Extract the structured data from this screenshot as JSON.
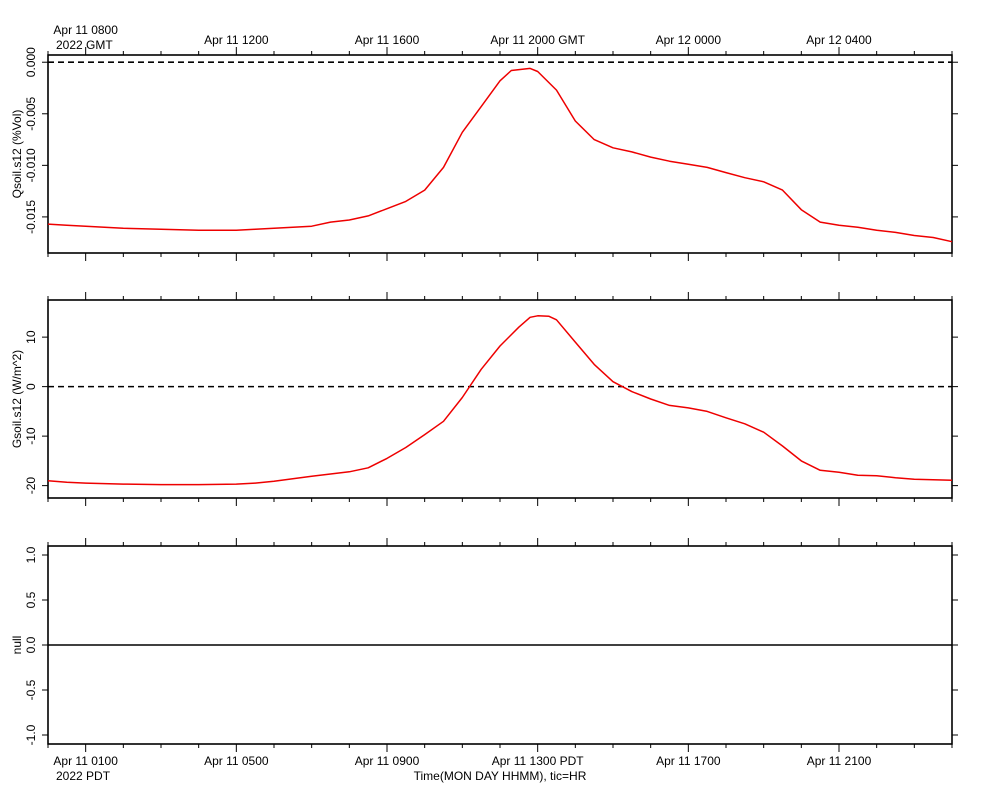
{
  "x_axis": {
    "start_hour_pdt": 0.0,
    "end_hour_pdt": 24.0,
    "top_ticks": [
      {
        "hour": 1,
        "label": "Apr 11 0800",
        "sublabel": "2022 GMT"
      },
      {
        "hour": 5,
        "label": "Apr 11 1200",
        "sublabel": ""
      },
      {
        "hour": 9,
        "label": "Apr 11 1600",
        "sublabel": ""
      },
      {
        "hour": 13,
        "label": "Apr 11 2000 GMT",
        "sublabel": ""
      },
      {
        "hour": 17,
        "label": "Apr 12 0000",
        "sublabel": ""
      },
      {
        "hour": 21,
        "label": "Apr 12 0400",
        "sublabel": ""
      }
    ],
    "bottom_ticks": [
      {
        "hour": 1,
        "label": "Apr 11 0100",
        "sublabel": "2022 PDT"
      },
      {
        "hour": 5,
        "label": "Apr 11 0500",
        "sublabel": ""
      },
      {
        "hour": 9,
        "label": "Apr 11 0900",
        "sublabel": ""
      },
      {
        "hour": 13,
        "label": "Apr 11 1300 PDT",
        "sublabel": ""
      },
      {
        "hour": 17,
        "label": "Apr 11 1700",
        "sublabel": ""
      },
      {
        "hour": 21,
        "label": "Apr 11 2100",
        "sublabel": ""
      }
    ],
    "xlabel": "Time(MON DAY HHMM), tic=HR"
  },
  "chart_data": [
    {
      "type": "line",
      "ylabel": "Qsoil.s12 (%Vol)",
      "ylim": [
        -0.0185,
        0.0007
      ],
      "yticks": [
        {
          "value": 0.0,
          "label": "0.000"
        },
        {
          "value": -0.005,
          "label": "-0.005"
        },
        {
          "value": -0.01,
          "label": "-0.010"
        },
        {
          "value": -0.015,
          "label": "-0.015"
        }
      ],
      "reference_line": 0.0,
      "series_color": "#ee0000",
      "series": [
        {
          "x": [
            0,
            0.5,
            1,
            2,
            3,
            4,
            5,
            5.5,
            6,
            7,
            7.5,
            8,
            8.5,
            9,
            9.5,
            10,
            10.5,
            11,
            11.5,
            12,
            12.3,
            12.8,
            13,
            13.5,
            14,
            14.5,
            15,
            15.5,
            16,
            16.5,
            17,
            17.5,
            18,
            18.5,
            19,
            19.5,
            20,
            20.5,
            21,
            21.5,
            22,
            22.5,
            23,
            23.5,
            24
          ],
          "y": [
            -0.0157,
            -0.0158,
            -0.0159,
            -0.0161,
            -0.0162,
            -0.0163,
            -0.0163,
            -0.0162,
            -0.0161,
            -0.0159,
            -0.0155,
            -0.0153,
            -0.0149,
            -0.0142,
            -0.0135,
            -0.0124,
            -0.0102,
            -0.0068,
            -0.0043,
            -0.0018,
            -0.0008,
            -0.0006,
            -0.0009,
            -0.0027,
            -0.0057,
            -0.0075,
            -0.0083,
            -0.0087,
            -0.0092,
            -0.0096,
            -0.0099,
            -0.0102,
            -0.0107,
            -0.0112,
            -0.0116,
            -0.0124,
            -0.0143,
            -0.0155,
            -0.0158,
            -0.016,
            -0.0163,
            -0.0165,
            -0.0168,
            -0.017,
            -0.0174
          ]
        }
      ]
    },
    {
      "type": "line",
      "ylabel": "Gsoil.s12 (W/m^2)",
      "ylim": [
        -22.5,
        17.5
      ],
      "yticks": [
        {
          "value": 10,
          "label": "10"
        },
        {
          "value": 0,
          "label": "0"
        },
        {
          "value": -10,
          "label": "-10"
        },
        {
          "value": -20,
          "label": "-20"
        }
      ],
      "reference_line": 0,
      "series_color": "#ee0000",
      "series": [
        {
          "x": [
            0,
            0.5,
            1,
            2,
            3,
            4,
            5,
            5.5,
            6,
            6.5,
            7,
            8,
            8.5,
            9,
            9.5,
            10,
            10.5,
            11,
            11.5,
            12,
            12.5,
            12.8,
            13,
            13.3,
            13.5,
            14,
            14.5,
            15,
            15.5,
            16,
            16.5,
            17,
            17.5,
            18,
            18.5,
            19,
            19.5,
            20,
            20.5,
            21,
            21.5,
            22,
            22.5,
            23,
            24
          ],
          "y": [
            -19,
            -19.3,
            -19.5,
            -19.7,
            -19.8,
            -19.8,
            -19.7,
            -19.5,
            -19.1,
            -18.6,
            -18.1,
            -17.2,
            -16.4,
            -14.5,
            -12.3,
            -9.7,
            -7,
            -2.2,
            3.5,
            8.2,
            12,
            14,
            14.3,
            14.2,
            13.5,
            9,
            4.5,
            1,
            -1,
            -2.5,
            -3.8,
            -4.3,
            -5,
            -6.3,
            -7.5,
            -9.2,
            -12,
            -15,
            -16.9,
            -17.3,
            -17.9,
            -18,
            -18.4,
            -18.7,
            -18.9
          ]
        }
      ]
    },
    {
      "type": "line",
      "ylabel": "null",
      "ylim": [
        -1.1,
        1.1
      ],
      "yticks": [
        {
          "value": 1,
          "label": "1.0"
        },
        {
          "value": 0.5,
          "label": "0.5"
        },
        {
          "value": 0,
          "label": "0.0"
        },
        {
          "value": -0.5,
          "label": "-0.5"
        },
        {
          "value": -1,
          "label": "-1.0"
        }
      ],
      "reference_line": null,
      "series_color": "#000000",
      "series": [
        {
          "x": [
            0,
            24
          ],
          "y": [
            0,
            0
          ]
        }
      ]
    }
  ]
}
